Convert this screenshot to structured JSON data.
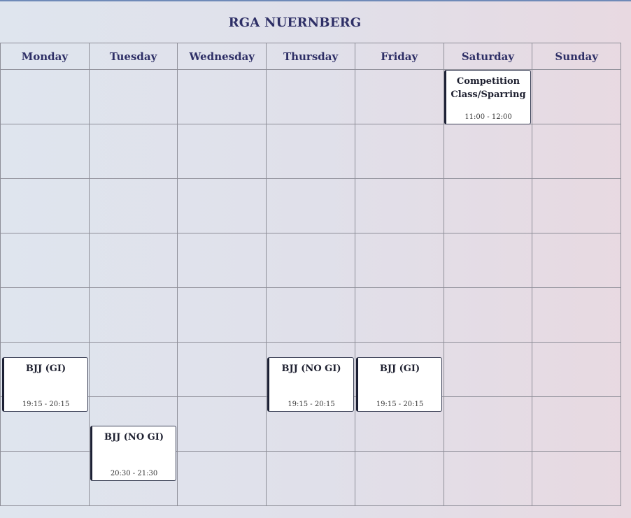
{
  "title": "RGA NUERNBERG",
  "days": [
    "Monday",
    "Tuesday",
    "Wednesday",
    "Thursday",
    "Friday",
    "Saturday",
    "Sunday"
  ],
  "events": [
    {
      "day": "Saturday",
      "name": "Competition Class/Sparring",
      "time": "11:00 - 12:00"
    },
    {
      "day": "Monday",
      "name": "BJJ (GI)",
      "time": "19:15 - 20:15"
    },
    {
      "day": "Thursday",
      "name": "BJJ (NO GI)",
      "time": "19:15 - 20:15"
    },
    {
      "day": "Friday",
      "name": "BJJ (GI)",
      "time": "19:15 - 20:15"
    },
    {
      "day": "Tuesday",
      "name": "BJJ (NO GI)",
      "time": "20:30 - 21:30"
    }
  ]
}
